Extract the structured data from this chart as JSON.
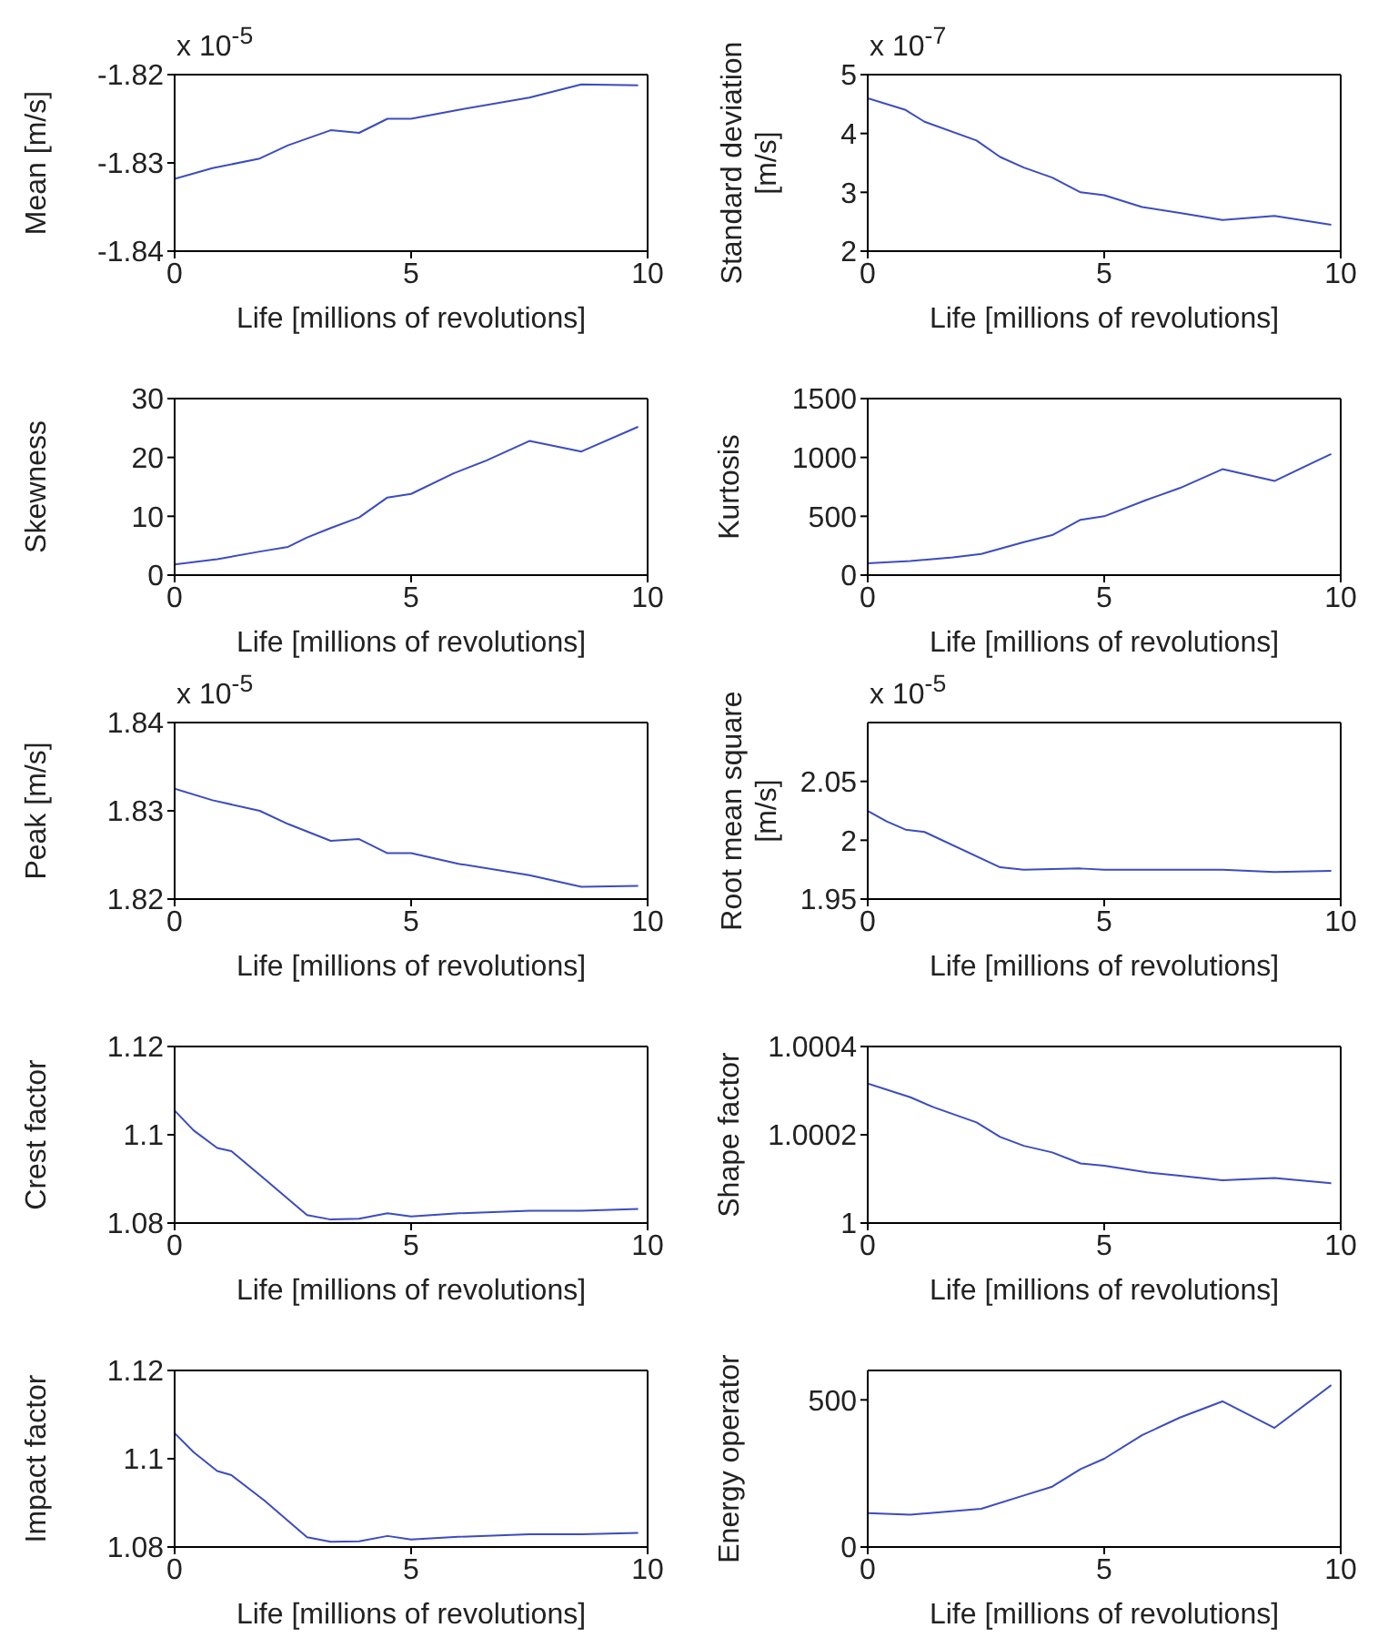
{
  "chart_data": [
    {
      "type": "line",
      "ylabel": "Mean [m/s]",
      "xlabel": "Life [millions of revolutions]",
      "annotations": [
        "x 10$^{-5}$"
      ],
      "xlim": [
        0,
        10
      ],
      "xticks": [
        0,
        5,
        10
      ],
      "ylim": [
        -1.84,
        -1.82
      ],
      "yticks": [
        -1.84,
        -1.83,
        -1.82
      ],
      "color": "#3b4cc0",
      "x": [
        0,
        0.8,
        1.8,
        2.4,
        3.3,
        3.9,
        4.5,
        5.0,
        6.0,
        7.5,
        8.6,
        9.8
      ],
      "values": [
        -1.8318,
        -1.8306,
        -1.8295,
        -1.828,
        -1.8263,
        -1.8266,
        -1.825,
        -1.825,
        -1.824,
        -1.8226,
        -1.8211,
        -1.8212
      ]
    },
    {
      "type": "line",
      "ylabel": "Standard deviation\n[m/s]",
      "xlabel": "Life [millions of revolutions]",
      "annotations": [
        "x 10$^{-7}$"
      ],
      "xlim": [
        0,
        10
      ],
      "xticks": [
        0,
        5,
        10
      ],
      "ylim": [
        2,
        5
      ],
      "yticks": [
        2,
        3,
        4,
        5
      ],
      "color": "#3b4cc0",
      "x": [
        0,
        0.8,
        1.2,
        2.3,
        2.8,
        3.3,
        3.9,
        4.5,
        5.0,
        5.8,
        6.6,
        7.5,
        8.6,
        9.8
      ],
      "values": [
        4.6,
        4.4,
        4.2,
        3.88,
        3.6,
        3.42,
        3.25,
        3.0,
        2.95,
        2.75,
        2.65,
        2.53,
        2.6,
        2.45
      ]
    },
    {
      "type": "line",
      "ylabel": "Skewness",
      "xlabel": "Life [millions of revolutions]",
      "xlim": [
        0,
        10
      ],
      "xticks": [
        0,
        5,
        10
      ],
      "ylim": [
        0,
        30
      ],
      "yticks": [
        0,
        10,
        20,
        30
      ],
      "color": "#3b4cc0",
      "x": [
        0,
        0.9,
        1.8,
        2.4,
        2.8,
        3.3,
        3.9,
        4.5,
        5.0,
        5.9,
        6.6,
        7.5,
        8.6,
        9.8
      ],
      "values": [
        1.8,
        2.7,
        4,
        4.8,
        6.4,
        8,
        9.8,
        13.2,
        13.8,
        17.3,
        19.5,
        22.8,
        21,
        25.2
      ]
    },
    {
      "type": "line",
      "ylabel": "Kurtosis",
      "xlabel": "Life [millions of revolutions]",
      "xlim": [
        0,
        10
      ],
      "xticks": [
        0,
        5,
        10
      ],
      "ylim": [
        0,
        1500
      ],
      "yticks": [
        0,
        500,
        1000,
        1500
      ],
      "color": "#3b4cc0",
      "x": [
        0,
        0.9,
        1.8,
        2.4,
        3.3,
        3.9,
        4.5,
        5.0,
        5.9,
        6.6,
        7.5,
        8.6,
        9.8
      ],
      "values": [
        100,
        120,
        150,
        180,
        280,
        340,
        470,
        500,
        640,
        740,
        900,
        800,
        1030
      ]
    },
    {
      "type": "line",
      "ylabel": "Peak [m/s]",
      "xlabel": "Life [millions of revolutions]",
      "annotations": [
        "x 10$^{-5}$"
      ],
      "xlim": [
        0,
        10
      ],
      "xticks": [
        0,
        5,
        10
      ],
      "ylim": [
        1.82,
        1.84
      ],
      "yticks": [
        1.82,
        1.83,
        1.84
      ],
      "color": "#3b4cc0",
      "x": [
        0,
        0.8,
        1.8,
        2.4,
        3.3,
        3.9,
        4.5,
        5.0,
        6.0,
        7.5,
        8.6,
        9.8
      ],
      "values": [
        1.8325,
        1.8312,
        1.83,
        1.8285,
        1.8266,
        1.8268,
        1.8252,
        1.8252,
        1.824,
        1.8227,
        1.8214,
        1.8215
      ]
    },
    {
      "type": "line",
      "ylabel": "Root mean square\n[m/s]",
      "xlabel": "Life [millions of revolutions]",
      "annotations": [
        "x 10$^{-5}$"
      ],
      "xlim": [
        0,
        10
      ],
      "xticks": [
        0,
        5,
        10
      ],
      "ylim": [
        1.95,
        2.1
      ],
      "yticks": [
        1.95,
        2,
        2.05
      ],
      "color": "#3b4cc0",
      "x": [
        0,
        0.4,
        0.8,
        1.2,
        2.8,
        3.3,
        4.5,
        5.0,
        7.5,
        8.6,
        9.8
      ],
      "values": [
        2.025,
        2.016,
        2.009,
        2.007,
        1.977,
        1.975,
        1.976,
        1.975,
        1.975,
        1.973,
        1.974
      ]
    },
    {
      "type": "line",
      "ylabel": "Crest factor",
      "xlabel": "Life [millions of revolutions]",
      "xlim": [
        0,
        10
      ],
      "xticks": [
        0,
        5,
        10
      ],
      "ylim": [
        1.08,
        1.12
      ],
      "yticks": [
        1.08,
        1.1,
        1.12
      ],
      "color": "#3b4cc0",
      "x": [
        0,
        0.4,
        0.9,
        1.2,
        1.9,
        2.8,
        3.3,
        3.9,
        4.5,
        5.0,
        6.0,
        7.5,
        8.6,
        9.8
      ],
      "values": [
        1.1055,
        1.101,
        1.097,
        1.0963,
        1.09,
        1.0818,
        1.0808,
        1.081,
        1.0822,
        1.0815,
        1.0822,
        1.0828,
        1.0828,
        1.0832
      ]
    },
    {
      "type": "line",
      "ylabel": "Shape factor",
      "xlabel": "Life [millions of revolutions]",
      "xlim": [
        0,
        10
      ],
      "xticks": [
        0,
        5,
        10
      ],
      "ylim": [
        1,
        1.0004
      ],
      "yticks": [
        1,
        1.0002,
        1.0004
      ],
      "color": "#3b4cc0",
      "x": [
        0,
        0.9,
        1.4,
        2.3,
        2.8,
        3.3,
        3.9,
        4.5,
        5.0,
        5.9,
        6.6,
        7.5,
        8.6,
        9.8
      ],
      "values": [
        1.000316,
        1.000285,
        1.000262,
        1.000228,
        1.000195,
        1.000175,
        1.00016,
        1.000135,
        1.00013,
        1.000115,
        1.000107,
        1.000097,
        1.000102,
        1.00009
      ]
    },
    {
      "type": "line",
      "ylabel": "Impact factor",
      "xlabel": "Life [millions of revolutions]",
      "xlim": [
        0,
        10
      ],
      "xticks": [
        0,
        5,
        10
      ],
      "ylim": [
        1.08,
        1.12
      ],
      "yticks": [
        1.08,
        1.1,
        1.12
      ],
      "color": "#3b4cc0",
      "x": [
        0,
        0.4,
        0.9,
        1.2,
        1.9,
        2.8,
        3.3,
        3.9,
        4.5,
        5.0,
        6.0,
        7.5,
        8.6,
        9.8
      ],
      "values": [
        1.1058,
        1.1015,
        1.0972,
        1.0963,
        1.0905,
        1.0822,
        1.0812,
        1.0813,
        1.0825,
        1.0817,
        1.0823,
        1.0829,
        1.0829,
        1.0832
      ]
    },
    {
      "type": "line",
      "ylabel": "Energy operator",
      "xlabel": "Life [millions of revolutions]",
      "xlim": [
        0,
        10
      ],
      "xticks": [
        0,
        5,
        10
      ],
      "ylim": [
        0,
        600
      ],
      "yticks": [
        0,
        500
      ],
      "color": "#3b4cc0",
      "x": [
        0,
        0.9,
        2.4,
        3.3,
        3.9,
        4.5,
        5.0,
        5.8,
        6.6,
        7.5,
        8.6,
        9.8
      ],
      "values": [
        115,
        110,
        130,
        175,
        205,
        265,
        300,
        380,
        440,
        495,
        405,
        550
      ]
    }
  ]
}
